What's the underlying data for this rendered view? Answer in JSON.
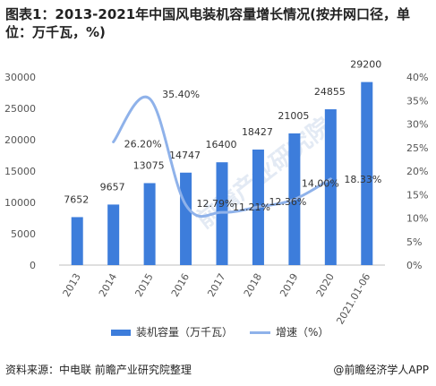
{
  "title": "图表1：2013-2021年中国风电装机容量增长情况(按并网口径，单位：万千瓦，%)",
  "source": "资料来源：中电联 前瞻产业研究院整理",
  "brand": "@前瞻经济学人APP",
  "watermark": "前瞻产业研究院",
  "colors": {
    "bar": "#3d7ddb",
    "line": "#8fb2ea"
  },
  "chart_data": {
    "type": "bar",
    "categories": [
      "2013",
      "2014",
      "2015",
      "2016",
      "2017",
      "2018",
      "2019",
      "2020",
      "2021.01-06"
    ],
    "series": [
      {
        "name": "装机容量（万千瓦）",
        "type": "bar",
        "axis": "left",
        "values": [
          7652,
          9657,
          13075,
          14747,
          16400,
          18427,
          21005,
          24855,
          29200
        ],
        "labels": [
          "7652",
          "9657",
          "13075",
          "14747",
          "16400",
          "18427",
          "21005",
          "24855",
          "29200"
        ]
      },
      {
        "name": "增速（%）",
        "type": "line",
        "axis": "right",
        "values": [
          null,
          26.2,
          35.4,
          12.79,
          11.21,
          12.36,
          14.0,
          18.33,
          null
        ],
        "labels": [
          "",
          "26.20%",
          "35.40%",
          "12.79%",
          "11.21%",
          "12.36%",
          "14.00%",
          "18.33%",
          ""
        ]
      }
    ],
    "ylim_left": [
      0,
      30000
    ],
    "yticks_left": [
      "0",
      "5000",
      "10000",
      "15000",
      "20000",
      "25000",
      "30000"
    ],
    "ylim_right": [
      0,
      40
    ],
    "yticks_right": [
      "0%",
      "5%",
      "10%",
      "15%",
      "20%",
      "25%",
      "30%",
      "35%",
      "40%"
    ],
    "grid": false,
    "legend_position": "bottom"
  }
}
